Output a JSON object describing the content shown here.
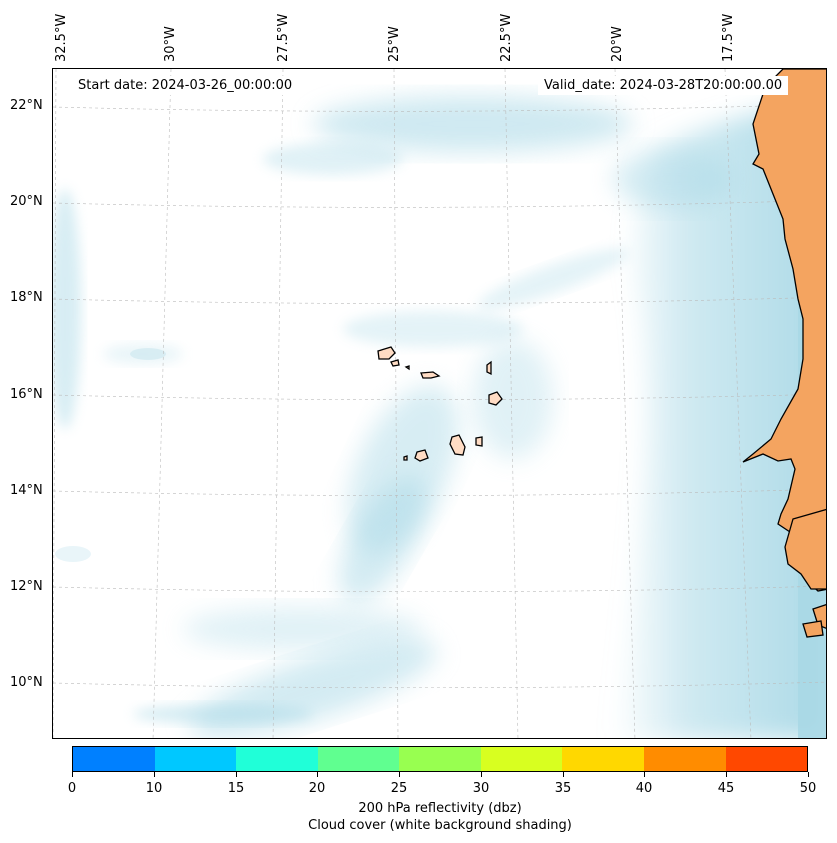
{
  "map": {
    "start_date": "Start date: 2024-03-26_00:00:00",
    "valid_date": "Valid_date: 2024-03-28T20:00:00.00",
    "lon_labels": [
      "32.5°W",
      "30°W",
      "27.5°W",
      "25°W",
      "22.5°W",
      "20°W",
      "17.5°W"
    ],
    "lat_labels": [
      "22°N",
      "20°N",
      "18°N",
      "16°N",
      "14°N",
      "12°N",
      "10°N"
    ],
    "land_color": "#f4a460",
    "cloud_color": "#a8d8e6",
    "features": [
      "Cape Verde islands",
      "West African coast"
    ]
  },
  "colorbar": {
    "ticks": [
      "0",
      "10",
      "15",
      "20",
      "25",
      "30",
      "35",
      "40",
      "45",
      "50"
    ],
    "colors": [
      "#0080ff",
      "#00c8ff",
      "#20ffd8",
      "#60ff90",
      "#98ff50",
      "#d8ff20",
      "#ffd800",
      "#ff8c00",
      "#ff4800"
    ],
    "title": "200 hPa reflectivity (dbz)",
    "subtitle": "Cloud cover (white background shading)"
  }
}
